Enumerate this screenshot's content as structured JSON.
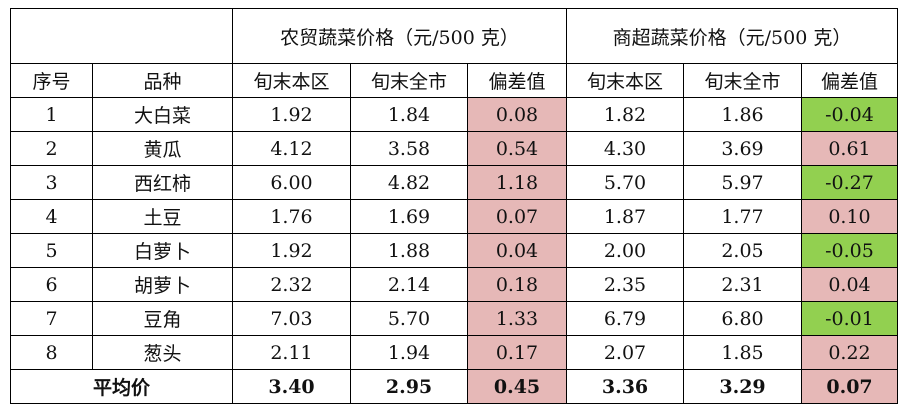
{
  "header": {
    "group_nongmao": "农贸蔬菜价格（元/500 克）",
    "group_shangchao": "商超蔬菜价格（元/500 克）",
    "col_index": "序号",
    "col_variety": "品种",
    "col_district": "旬末本区",
    "col_city": "旬末全市",
    "col_diff": "偏差值"
  },
  "rows": [
    {
      "idx": "1",
      "name": "大白菜",
      "n_d": "1.92",
      "n_c": "1.84",
      "n_diff": "0.08",
      "s_d": "1.82",
      "s_c": "1.86",
      "s_diff": "-0.04"
    },
    {
      "idx": "2",
      "name": "黄瓜",
      "n_d": "4.12",
      "n_c": "3.58",
      "n_diff": "0.54",
      "s_d": "4.30",
      "s_c": "3.69",
      "s_diff": "0.61"
    },
    {
      "idx": "3",
      "name": "西红柿",
      "n_d": "6.00",
      "n_c": "4.82",
      "n_diff": "1.18",
      "s_d": "5.70",
      "s_c": "5.97",
      "s_diff": "-0.27"
    },
    {
      "idx": "4",
      "name": "土豆",
      "n_d": "1.76",
      "n_c": "1.69",
      "n_diff": "0.07",
      "s_d": "1.87",
      "s_c": "1.77",
      "s_diff": "0.10"
    },
    {
      "idx": "5",
      "name": "白萝卜",
      "n_d": "1.92",
      "n_c": "1.88",
      "n_diff": "0.04",
      "s_d": "2.00",
      "s_c": "2.05",
      "s_diff": "-0.05"
    },
    {
      "idx": "6",
      "name": "胡萝卜",
      "n_d": "2.32",
      "n_c": "2.14",
      "n_diff": "0.18",
      "s_d": "2.35",
      "s_c": "2.31",
      "s_diff": "0.04"
    },
    {
      "idx": "7",
      "name": "豆角",
      "n_d": "7.03",
      "n_c": "5.70",
      "n_diff": "1.33",
      "s_d": "6.79",
      "s_c": "6.80",
      "s_diff": "-0.01"
    },
    {
      "idx": "8",
      "name": "葱头",
      "n_d": "2.11",
      "n_c": "1.94",
      "n_diff": "0.17",
      "s_d": "2.07",
      "s_c": "1.85",
      "s_diff": "0.22"
    }
  ],
  "average": {
    "label": "平均价",
    "n_d": "3.40",
    "n_c": "2.95",
    "n_diff": "0.45",
    "s_d": "3.36",
    "s_c": "3.29",
    "s_diff": "0.07"
  },
  "colors": {
    "positive_diff": "#e6b8b7",
    "negative_diff": "#92d050"
  }
}
